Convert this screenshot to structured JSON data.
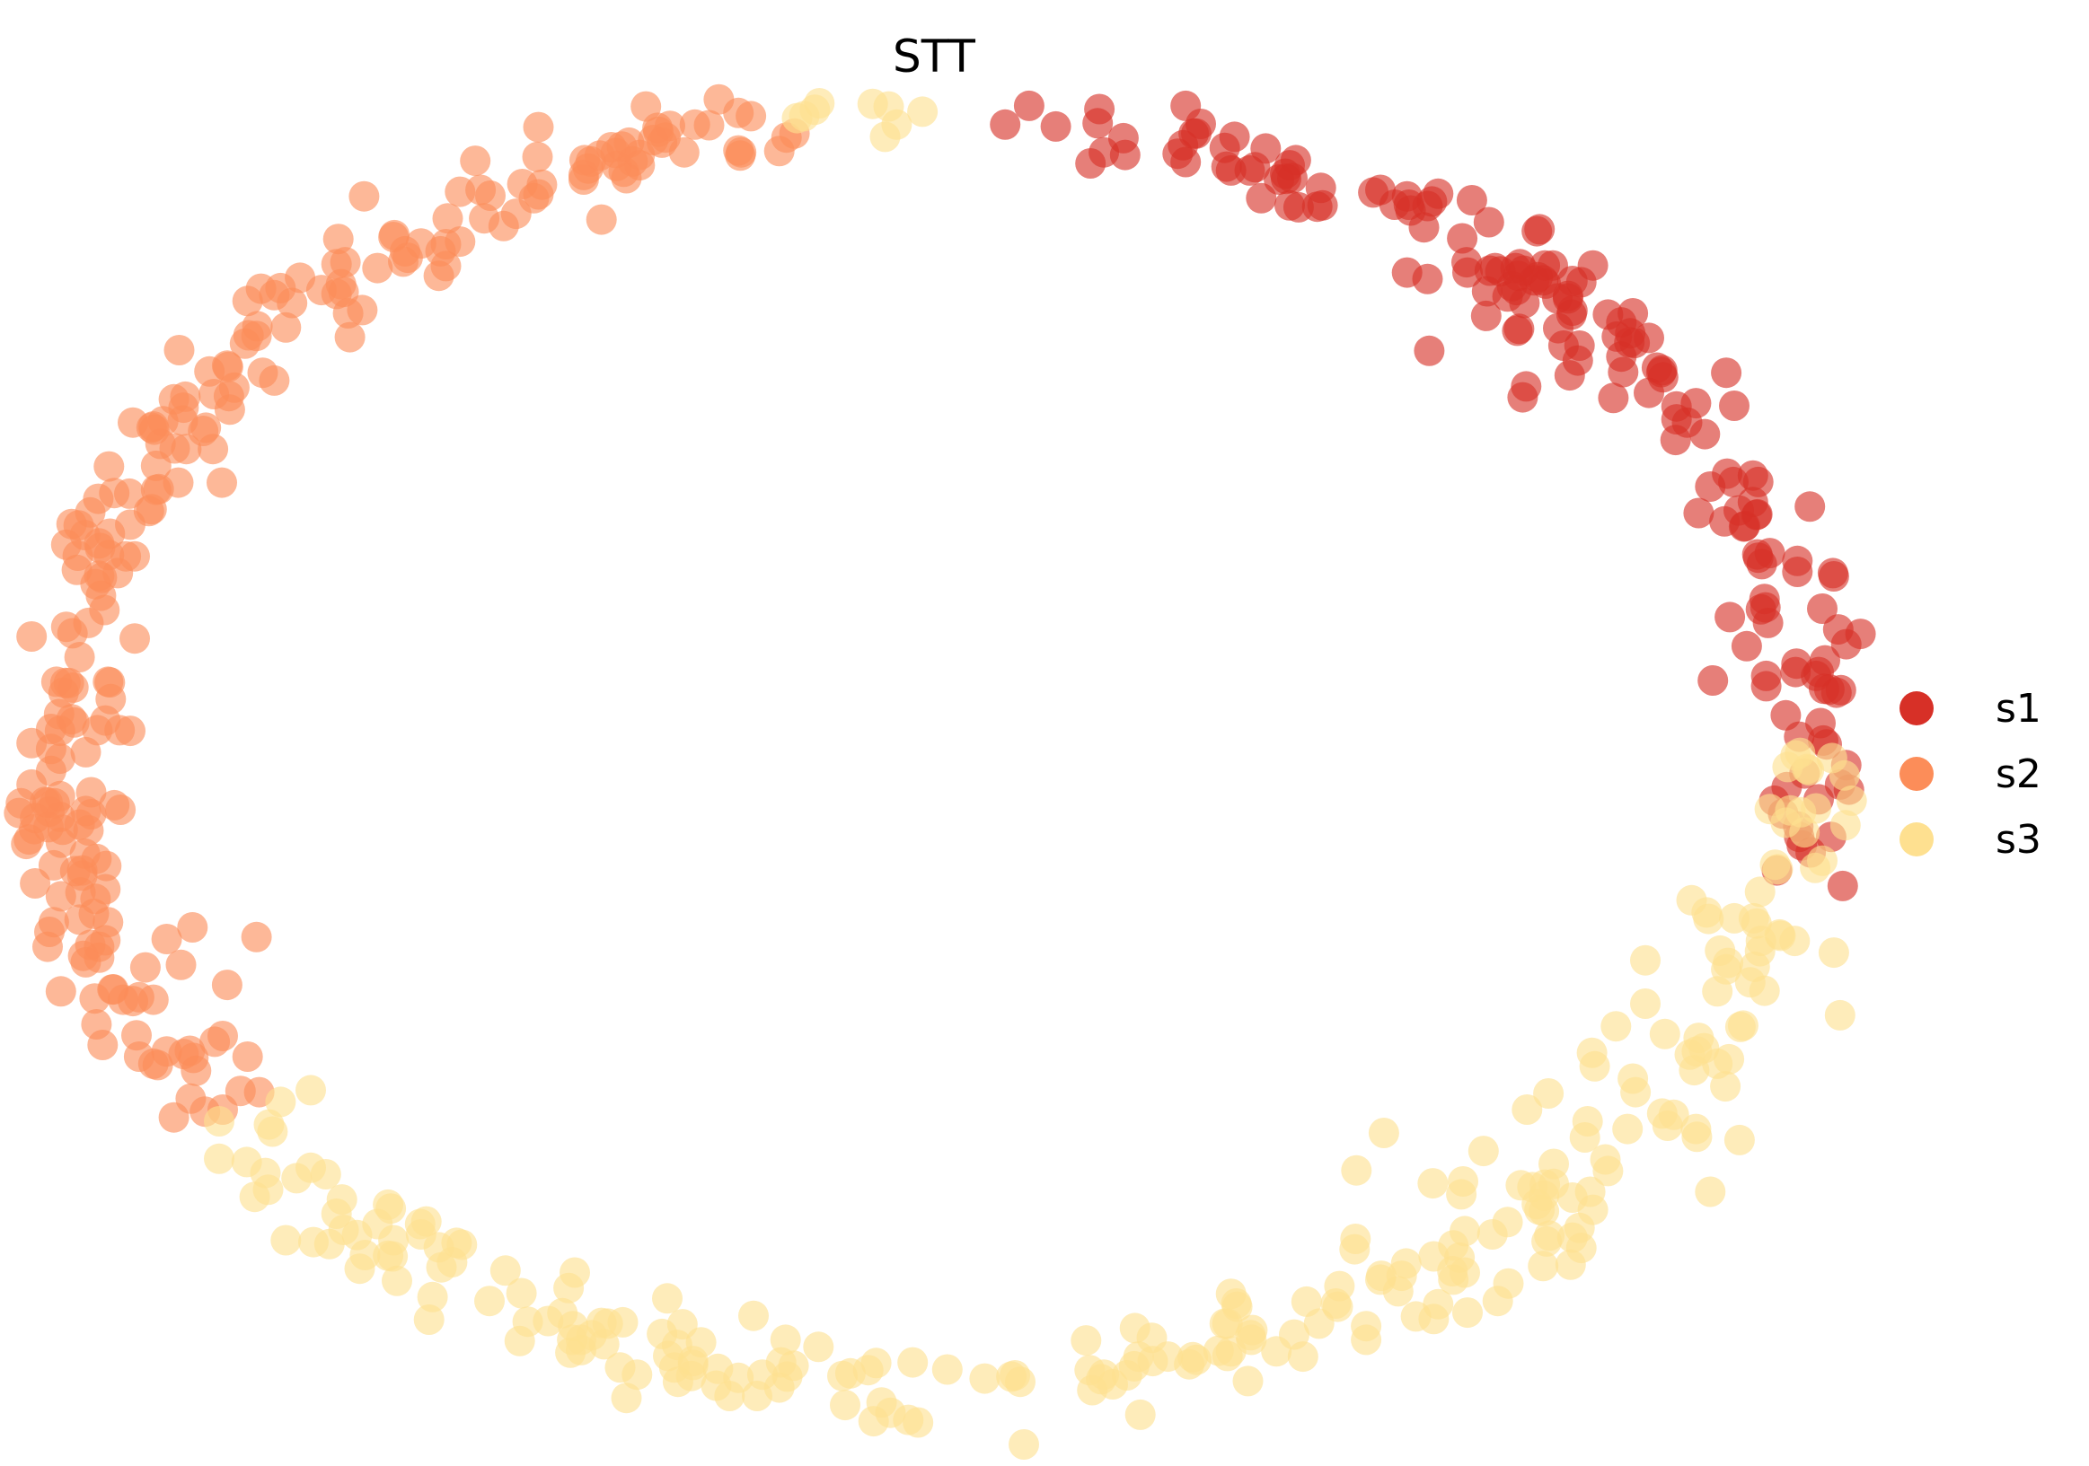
{
  "chart_data": {
    "type": "scatter",
    "title": "STT",
    "xlabel": "",
    "ylabel": "",
    "axes_visible": false,
    "grid": false,
    "legend_position": "right",
    "marker_opacity": 0.62,
    "x_range": [
      -1.1,
      1.1
    ],
    "y_range": [
      -1.1,
      1.1
    ],
    "series": [
      {
        "name": "s1",
        "color": "#d73027",
        "points": []
      },
      {
        "name": "s2",
        "color": "#fc8d59",
        "points": []
      },
      {
        "name": "s3",
        "color": "#fee090",
        "points": []
      }
    ],
    "arcs": [
      {
        "series": 0,
        "from_deg": 90,
        "to_deg": 5,
        "n": 130,
        "jitter": 0.035,
        "seed": 11
      },
      {
        "series": 0,
        "from_deg": 50,
        "to_deg": 38,
        "n": 30,
        "jitter": 0.05,
        "seed": 12
      },
      {
        "series": 0,
        "from_deg": 8,
        "to_deg": -12,
        "n": 22,
        "jitter": 0.03,
        "seed": 13
      },
      {
        "series": 1,
        "from_deg": 99,
        "to_deg": 215,
        "n": 230,
        "jitter": 0.03,
        "seed": 21
      },
      {
        "series": 1,
        "from_deg": 178,
        "to_deg": 205,
        "n": 25,
        "jitter": 0.06,
        "seed": 22
      },
      {
        "series": 2,
        "from_deg": 215,
        "to_deg": 360,
        "n": 230,
        "jitter": 0.035,
        "seed": 31
      },
      {
        "series": 2,
        "from_deg": 300,
        "to_deg": 340,
        "n": 30,
        "jitter": 0.07,
        "seed": 32
      },
      {
        "series": 2,
        "from_deg": 90,
        "to_deg": 100,
        "n": 10,
        "jitter": 0.02,
        "seed": 33
      }
    ]
  }
}
